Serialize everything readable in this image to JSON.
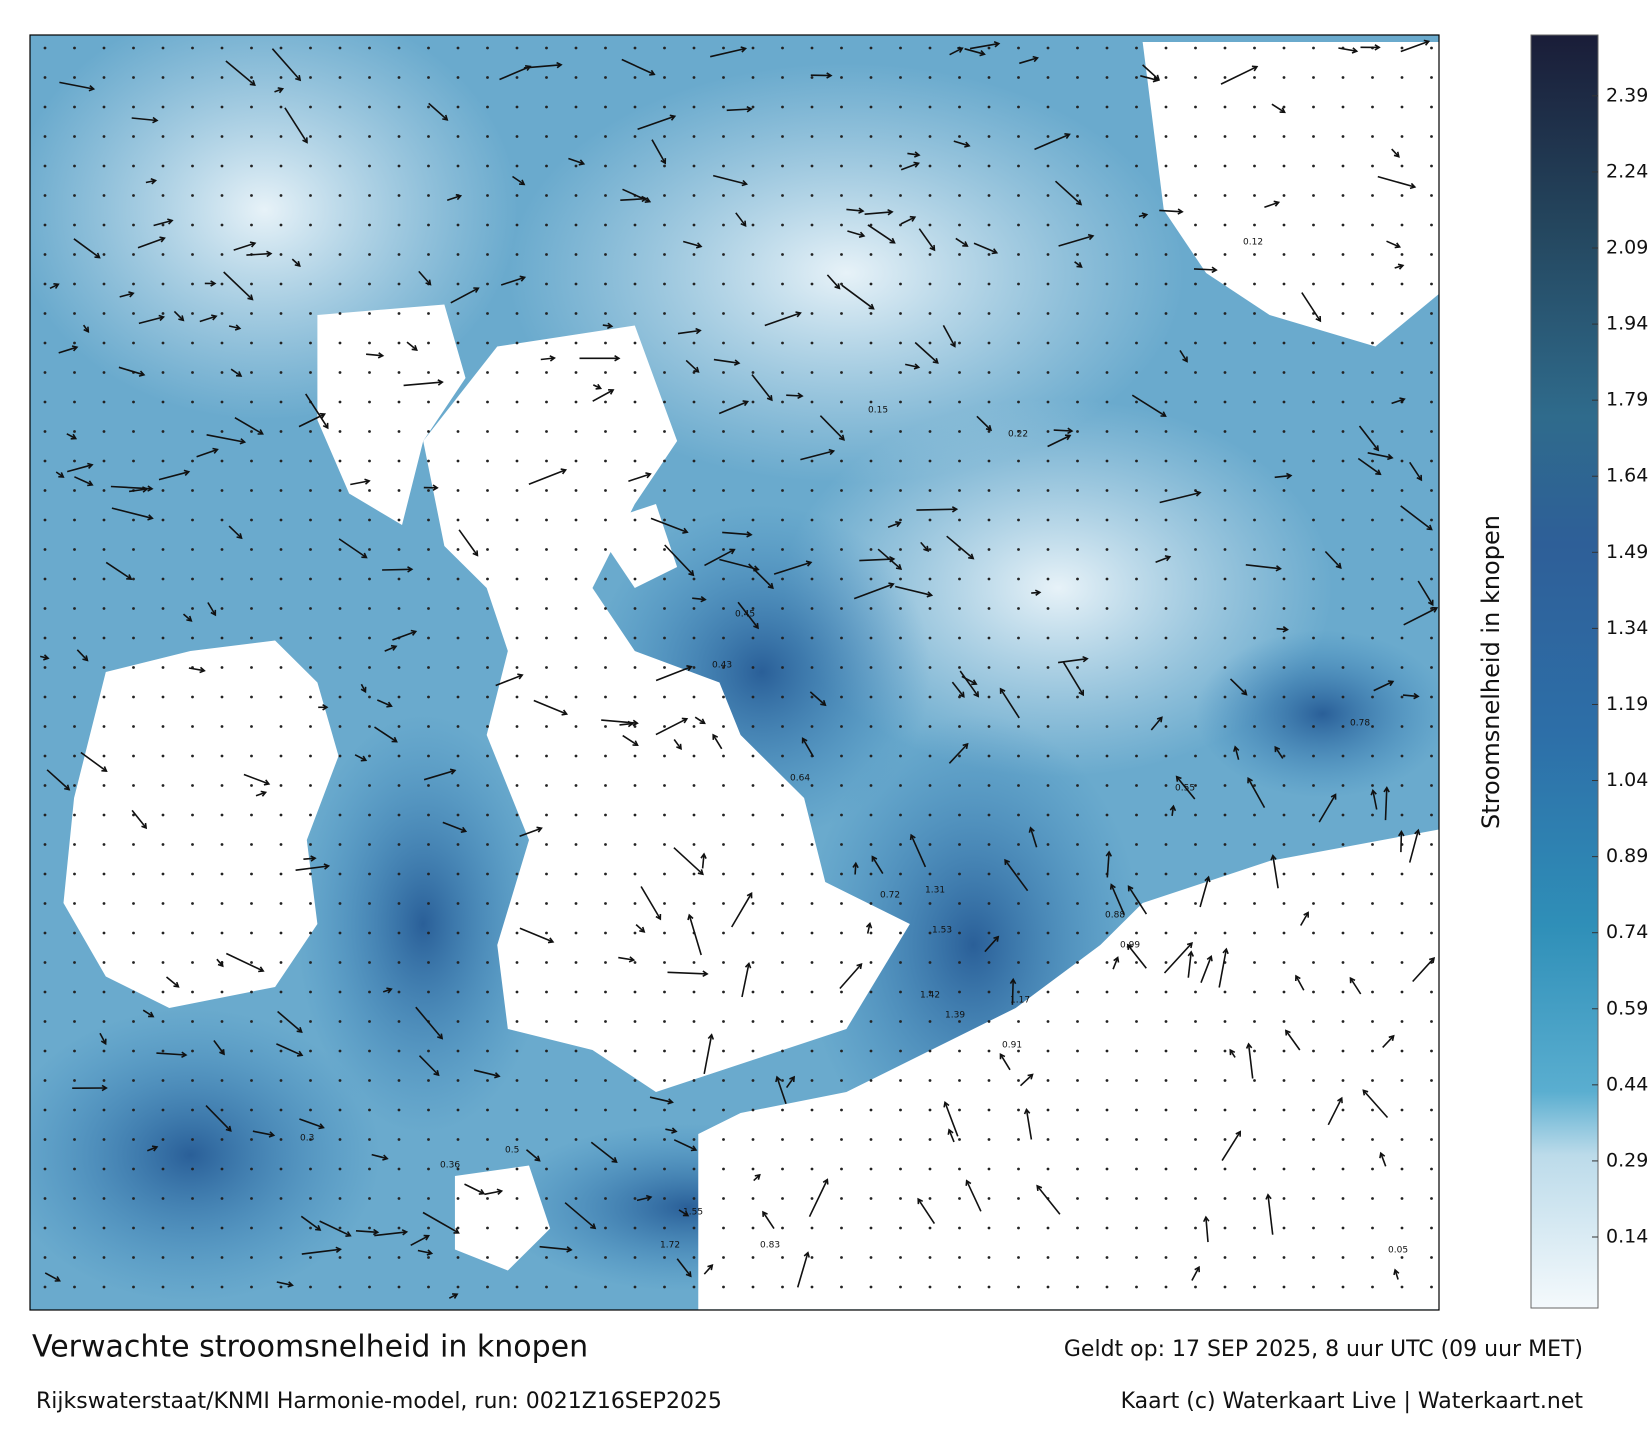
{
  "chart_data": {
    "type": "current-map",
    "title": "Verwachte stroomsnelheid in knopen",
    "subtitle": "Rijkswaterstaat/KNMI Harmonie-model, run: 0021Z16SEP2025",
    "valid_time": "Geldt op: 17 SEP 2025, 8 uur UTC (09 uur MET)",
    "credit": "Kaart (c) Waterkaart Live | Waterkaart.net",
    "colorbar": {
      "label": "Stroomsnelheid in knopen",
      "range": [
        0,
        2.51
      ],
      "ticks": [
        0.14,
        0.29,
        0.44,
        0.59,
        0.74,
        0.89,
        1.04,
        1.19,
        1.34,
        1.49,
        1.64,
        1.79,
        1.94,
        2.09,
        2.24,
        2.39
      ]
    },
    "map_labels": [
      "1.53",
      "1.42",
      "1.39",
      "1.31",
      "1.17",
      "0.99",
      "0.88",
      "0.72",
      "0.64",
      "0.45",
      "0.43",
      "0.78",
      "0.55",
      "0.22",
      "0.15",
      "0.12",
      "0.05",
      "0.91",
      "1.72",
      "1.55",
      "0.83",
      "0.36",
      "0.5",
      "0.3"
    ]
  }
}
